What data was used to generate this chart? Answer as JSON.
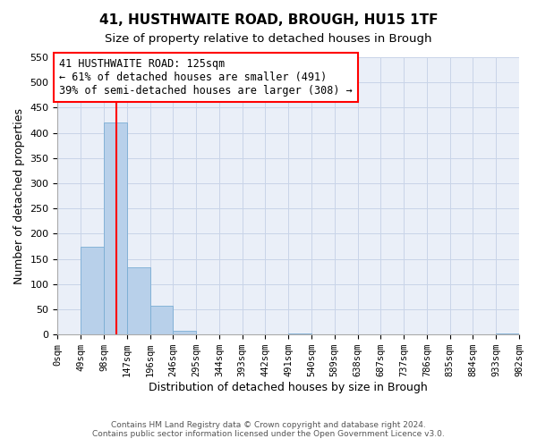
{
  "title": "41, HUSTHWAITE ROAD, BROUGH, HU15 1TF",
  "subtitle": "Size of property relative to detached houses in Brough",
  "xlabel": "Distribution of detached houses by size in Brough",
  "ylabel": "Number of detached properties",
  "bar_edges": [
    0,
    49,
    98,
    147,
    196,
    245,
    294,
    343,
    392,
    441,
    490,
    539,
    588,
    637,
    686,
    735,
    784,
    833,
    882,
    931,
    980
  ],
  "bar_heights": [
    0,
    175,
    420,
    133,
    57,
    7,
    0,
    0,
    0,
    0,
    2,
    0,
    0,
    0,
    0,
    0,
    0,
    0,
    0,
    2
  ],
  "tick_labels": [
    "0sqm",
    "49sqm",
    "98sqm",
    "147sqm",
    "196sqm",
    "246sqm",
    "295sqm",
    "344sqm",
    "393sqm",
    "442sqm",
    "491sqm",
    "540sqm",
    "589sqm",
    "638sqm",
    "687sqm",
    "737sqm",
    "786sqm",
    "835sqm",
    "884sqm",
    "933sqm",
    "982sqm"
  ],
  "bar_color": "#b8d0ea",
  "bar_edge_color": "#7aadd4",
  "property_line_x": 125,
  "property_line_color": "red",
  "annotation_title": "41 HUSTHWAITE ROAD: 125sqm",
  "annotation_line1": "← 61% of detached houses are smaller (491)",
  "annotation_line2": "39% of semi-detached houses are larger (308) →",
  "annotation_fontsize": 8.5,
  "ylim": [
    0,
    550
  ],
  "yticks": [
    0,
    50,
    100,
    150,
    200,
    250,
    300,
    350,
    400,
    450,
    500,
    550
  ],
  "grid_color": "#c8d4e8",
  "background_color": "#eaeff8",
  "footer_line1": "Contains HM Land Registry data © Crown copyright and database right 2024.",
  "footer_line2": "Contains public sector information licensed under the Open Government Licence v3.0.",
  "title_fontsize": 11,
  "subtitle_fontsize": 9.5,
  "xlabel_fontsize": 9,
  "ylabel_fontsize": 9
}
